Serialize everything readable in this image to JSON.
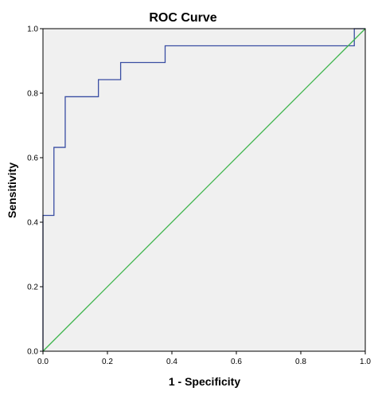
{
  "chart_data": {
    "type": "line",
    "title": "ROC Curve",
    "xlabel": "1 - Specificity",
    "ylabel": "Sensitivity",
    "xlim": [
      0.0,
      1.0
    ],
    "ylim": [
      0.0,
      1.0
    ],
    "x_ticks": [
      "0.0",
      "0.2",
      "0.4",
      "0.6",
      "0.8",
      "1.0"
    ],
    "y_ticks": [
      "0.0",
      "0.2",
      "0.4",
      "0.6",
      "0.8",
      "1.0"
    ],
    "grid": false,
    "legend": "none",
    "series": [
      {
        "role": "roc-curve",
        "color": "#3a4ea3",
        "points": [
          [
            0.0,
            0.0
          ],
          [
            0.0,
            0.421
          ],
          [
            0.034,
            0.421
          ],
          [
            0.034,
            0.632
          ],
          [
            0.069,
            0.632
          ],
          [
            0.069,
            0.789
          ],
          [
            0.172,
            0.789
          ],
          [
            0.172,
            0.842
          ],
          [
            0.241,
            0.842
          ],
          [
            0.241,
            0.895
          ],
          [
            0.379,
            0.895
          ],
          [
            0.379,
            0.947
          ],
          [
            0.966,
            0.947
          ],
          [
            0.966,
            1.0
          ],
          [
            1.0,
            1.0
          ]
        ]
      },
      {
        "role": "reference-line",
        "color": "#3cb44b",
        "points": [
          [
            0.0,
            0.0
          ],
          [
            1.0,
            1.0
          ]
        ]
      }
    ],
    "plot_background": "#f0f0f0"
  }
}
